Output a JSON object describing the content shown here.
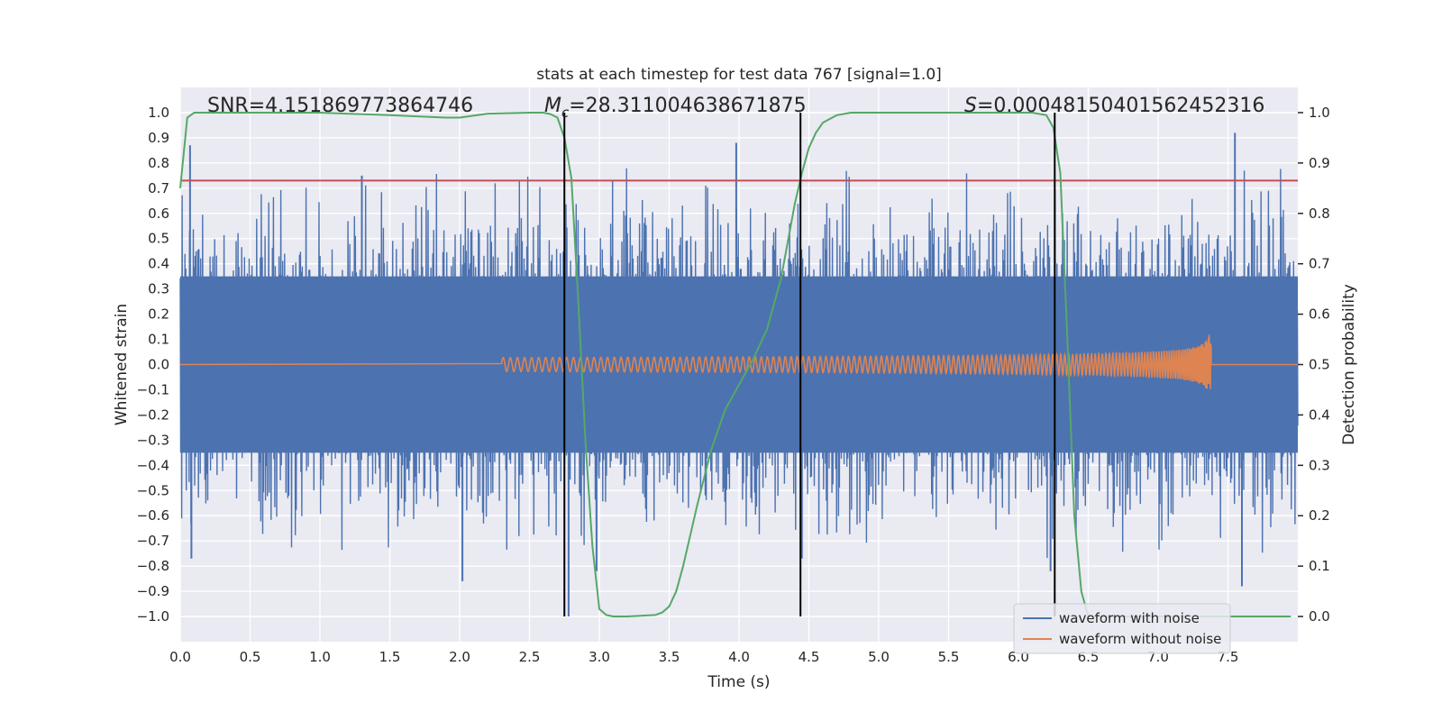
{
  "chart_data": {
    "type": "line",
    "title": "stats at each timestep for test data 767 [signal=1.0]",
    "xlabel": "Time (s)",
    "ylabel": "Whitened strain",
    "y2label": "Detection probability",
    "xlim": [
      0.0,
      8.0
    ],
    "ylim": [
      -1.1,
      1.1
    ],
    "y2lim": [
      -0.05,
      1.05
    ],
    "xticks": [
      0.0,
      0.5,
      1.0,
      1.5,
      2.0,
      2.5,
      3.0,
      3.5,
      4.0,
      4.5,
      5.0,
      5.5,
      6.0,
      6.5,
      7.0,
      7.5
    ],
    "xtick_labels": [
      "0.0",
      "0.5",
      "1.0",
      "1.5",
      "2.0",
      "2.5",
      "3.0",
      "3.5",
      "4.0",
      "4.5",
      "5.0",
      "5.5",
      "6.0",
      "6.5",
      "7.0",
      "7.5"
    ],
    "yticks": [
      1.0,
      0.9,
      0.8,
      0.7,
      0.6,
      0.5,
      0.4,
      0.3,
      0.2,
      0.1,
      0.0,
      -0.1,
      -0.2,
      -0.3,
      -0.4,
      -0.5,
      -0.6,
      -0.7,
      -0.8,
      -0.9,
      -1.0
    ],
    "ytick_labels": [
      "1.0",
      "0.9",
      "0.8",
      "0.7",
      "0.6",
      "0.5",
      "0.4",
      "0.3",
      "0.2",
      "0.1",
      "0.0",
      "−0.1",
      "−0.2",
      "−0.3",
      "−0.4",
      "−0.5",
      "−0.6",
      "−0.7",
      "−0.8",
      "−0.9",
      "−1.0"
    ],
    "y2ticks": [
      1.0,
      0.9,
      0.8,
      0.7,
      0.6,
      0.5,
      0.4,
      0.3,
      0.2,
      0.1,
      0.0
    ],
    "y2tick_labels": [
      "1.0",
      "0.9",
      "0.8",
      "0.7",
      "0.6",
      "0.5",
      "0.4",
      "0.3",
      "0.2",
      "0.1",
      "0.0"
    ],
    "annotations": {
      "snr": "SNR=4.151869773864746",
      "mc_symbol": "M",
      "mc_subscript": "c",
      "mc_value": "=28.311004638671875",
      "s_symbol": "S",
      "s_value": "=0.00048150401562452316"
    },
    "threshold_line": {
      "y": 0.73,
      "color": "#c44e52"
    },
    "vertical_lines": [
      2.75,
      4.44,
      6.26
    ],
    "series": [
      {
        "name": "waveform with noise",
        "color": "#4c72b0",
        "x_range": [
          0.0,
          8.0
        ],
        "envelope_upper": 0.35,
        "envelope_lower": -0.35,
        "notable_peaks": [
          {
            "x": 0.07,
            "y": 0.87
          },
          {
            "x": 0.08,
            "y": -0.77
          },
          {
            "x": 1.3,
            "y": 0.75
          },
          {
            "x": 2.02,
            "y": -0.86
          },
          {
            "x": 2.78,
            "y": -1.0
          },
          {
            "x": 2.98,
            "y": -0.82
          },
          {
            "x": 3.98,
            "y": 0.88
          },
          {
            "x": 4.45,
            "y": -0.77
          },
          {
            "x": 6.23,
            "y": -0.82
          },
          {
            "x": 7.55,
            "y": 0.92
          },
          {
            "x": 7.6,
            "y": -0.88
          }
        ]
      },
      {
        "name": "waveform without noise",
        "color": "#dd8452",
        "chirp_start": 2.3,
        "chirp_end": 7.38,
        "peak_amplitude": 0.22
      },
      {
        "name": "detection probability",
        "color": "#55a868",
        "axis": "right",
        "x": [
          0.0,
          0.05,
          0.1,
          0.15,
          0.2,
          0.5,
          1.0,
          1.5,
          1.9,
          2.0,
          2.2,
          2.5,
          2.6,
          2.65,
          2.7,
          2.75,
          2.8,
          2.85,
          2.9,
          2.95,
          3.0,
          3.05,
          3.1,
          3.2,
          3.4,
          3.45,
          3.5,
          3.55,
          3.6,
          3.7,
          3.8,
          3.9,
          4.0,
          4.1,
          4.2,
          4.3,
          4.4,
          4.45,
          4.5,
          4.55,
          4.6,
          4.7,
          4.8,
          5.0,
          5.5,
          6.0,
          6.1,
          6.2,
          6.25,
          6.3,
          6.35,
          6.4,
          6.45,
          6.5,
          6.6,
          7.0,
          7.5,
          7.95
        ],
        "values": [
          0.85,
          0.99,
          1.0,
          1.0,
          1.0,
          1.0,
          1.0,
          0.995,
          0.99,
          0.99,
          0.998,
          1.0,
          1.0,
          0.997,
          0.99,
          0.95,
          0.87,
          0.62,
          0.35,
          0.14,
          0.015,
          0.003,
          0.0,
          0.0,
          0.003,
          0.008,
          0.02,
          0.05,
          0.1,
          0.22,
          0.33,
          0.41,
          0.46,
          0.51,
          0.57,
          0.67,
          0.82,
          0.88,
          0.93,
          0.96,
          0.98,
          0.995,
          1.0,
          1.0,
          1.0,
          1.0,
          1.0,
          0.995,
          0.97,
          0.88,
          0.55,
          0.2,
          0.05,
          0.0,
          0.0,
          0.0,
          0.0,
          0.0
        ]
      }
    ],
    "legend": {
      "position": "lower-right",
      "entries": [
        {
          "label": "waveform with noise",
          "color": "#4c72b0"
        },
        {
          "label": "waveform without noise",
          "color": "#dd8452"
        }
      ]
    },
    "grid": true,
    "background": "#eaeaf2"
  }
}
